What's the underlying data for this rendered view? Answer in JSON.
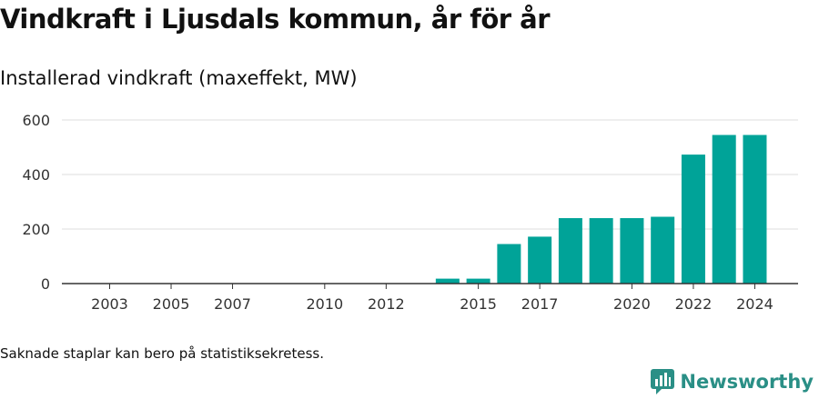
{
  "title": "Vindkraft i Ljusdals kommun, år för år",
  "subtitle": "Installerad vindkraft (maxeffekt, MW)",
  "footnote": "Saknade staplar kan bero på statistiksekretess.",
  "brand": "Newsworthy",
  "colors": {
    "bar": "#00a398",
    "grid": "#dddddd",
    "axis": "#333333",
    "text": "#333333",
    "brand": "#2a8f86"
  },
  "chart_data": {
    "type": "bar",
    "title": "Vindkraft i Ljusdals kommun, år för år",
    "subtitle": "Installerad vindkraft (maxeffekt, MW)",
    "xlabel": "",
    "ylabel": "",
    "categories": [
      2003,
      2004,
      2005,
      2006,
      2007,
      2008,
      2009,
      2010,
      2011,
      2012,
      2013,
      2014,
      2015,
      2016,
      2017,
      2018,
      2019,
      2020,
      2021,
      2022,
      2023,
      2024
    ],
    "values": [
      0,
      0,
      0,
      0,
      0,
      0,
      0,
      0,
      0,
      0,
      0,
      18,
      18,
      145,
      172,
      240,
      240,
      240,
      245,
      473,
      545,
      545
    ],
    "x_tick_labels": [
      "2003",
      "2005",
      "2007",
      "2010",
      "2012",
      "2015",
      "2017",
      "2020",
      "2022",
      "2024"
    ],
    "y_ticks": [
      0,
      200,
      400,
      600
    ],
    "ylim": [
      0,
      600
    ],
    "grid": true,
    "legend": "none"
  }
}
